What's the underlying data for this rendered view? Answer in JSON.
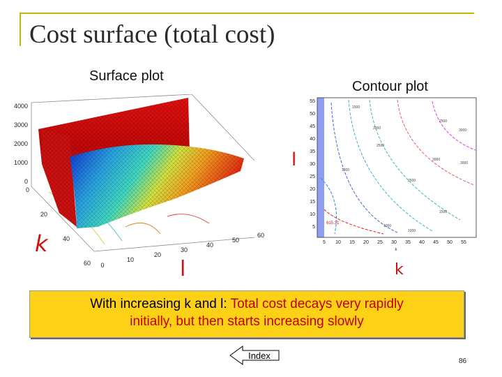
{
  "slide": {
    "title": "Cost surface (total cost)",
    "surface_caption": "Surface plot",
    "contour_caption": "Contour plot",
    "page_number": "86"
  },
  "annotations": {
    "k_left": "k",
    "l_bottom": "l",
    "l_contour": "l",
    "k_contour": "k"
  },
  "callout": {
    "part1": "With increasing k and l: ",
    "part2": "Total cost decays very rapidly",
    "line2": "initially, but then starts increasing slowly"
  },
  "nav": {
    "index_label": "Index"
  },
  "surface_plot": {
    "z_ticks": [
      "4000",
      "3000",
      "2000",
      "1000",
      "0"
    ],
    "l_ticks": [
      "0",
      "20",
      "40",
      "60"
    ],
    "k_ticks": [
      "0",
      "10",
      "20",
      "30",
      "40",
      "50",
      "60"
    ]
  },
  "contour_plot": {
    "y_ticks": [
      "55",
      "50",
      "45",
      "40",
      "35",
      "30",
      "25",
      "20",
      "15",
      "10",
      "5"
    ],
    "x_ticks": [
      "5",
      "10",
      "15",
      "20",
      "25",
      "30",
      "35",
      "40",
      "45",
      "50",
      "55"
    ],
    "x_axis_label": "k",
    "min_label": "615.31",
    "contour_labels": [
      "1500",
      "1000",
      "2000",
      "2500",
      "3000",
      "3000",
      "2500",
      "1500",
      "1000",
      "1000",
      "2500",
      "3000"
    ]
  },
  "colors": {
    "accent": "#d4b300",
    "callout_bg": "#fcd116",
    "annotation": "#d01010",
    "callout_red": "#c00000"
  }
}
